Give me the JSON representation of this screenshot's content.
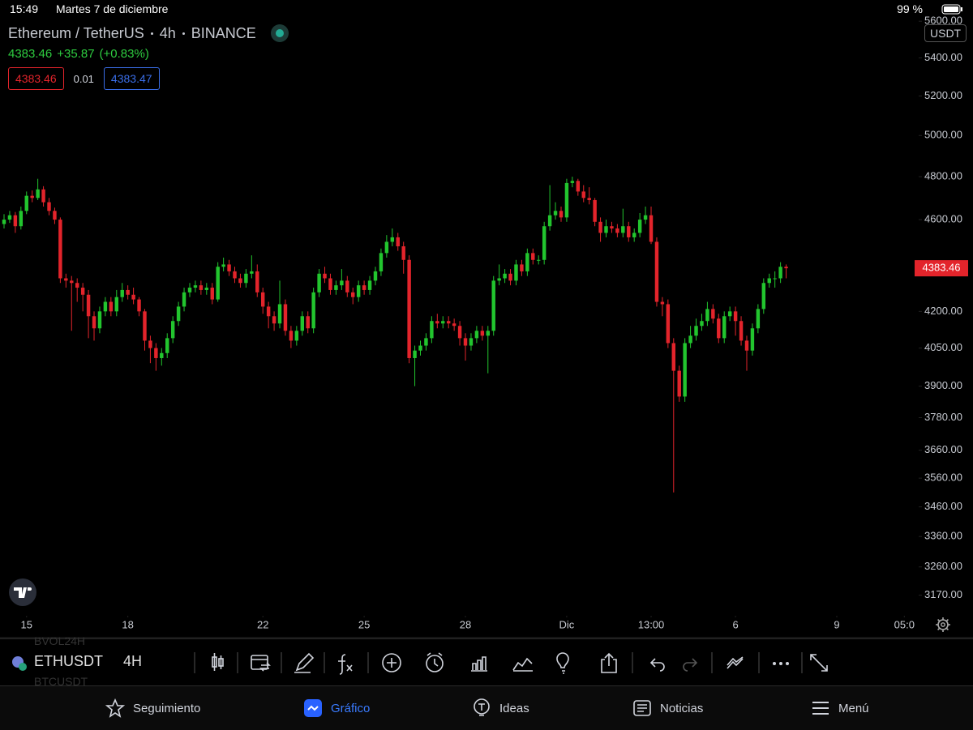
{
  "status_bar": {
    "time": "15:49",
    "date": "Martes 7 de diciembre",
    "battery": "99 %"
  },
  "header": {
    "name": "Ethereum / TetherUS",
    "interval": "4h",
    "exchange": "BINANCE",
    "last": "4383.46",
    "change": "+35.87",
    "change_pct": "(+0.83%)",
    "bid": "4383.46",
    "spread": "0.01",
    "ask": "4383.47",
    "currency": "USDT"
  },
  "chart_data": {
    "type": "candlestick",
    "up_color": "#22c52e",
    "down_color": "#e3242b",
    "log_scale": true,
    "ylim": [
      3106,
      5719
    ],
    "yticks": [
      {
        "value": 5600,
        "label": "5600.00"
      },
      {
        "value": 5400,
        "label": "5400.00"
      },
      {
        "value": 5200,
        "label": "5200.00"
      },
      {
        "value": 5000,
        "label": "5000.00"
      },
      {
        "value": 4800,
        "label": "4800.00"
      },
      {
        "value": 4600,
        "label": "4600.00"
      },
      {
        "value": 4200,
        "label": "4200.00"
      },
      {
        "value": 4050,
        "label": "4050.00"
      },
      {
        "value": 3900,
        "label": "3900.00"
      },
      {
        "value": 3780,
        "label": "3780.00"
      },
      {
        "value": 3660,
        "label": "3660.00"
      },
      {
        "value": 3560,
        "label": "3560.00"
      },
      {
        "value": 3460,
        "label": "3460.00"
      },
      {
        "value": 3360,
        "label": "3360.00"
      },
      {
        "value": 3260,
        "label": "3260.00"
      },
      {
        "value": 3170,
        "label": "3170.00"
      }
    ],
    "xlim": [
      -0.72,
      161.4
    ],
    "xticks": [
      {
        "value": 4,
        "label": "15"
      },
      {
        "value": 22,
        "label": "18"
      },
      {
        "value": 46,
        "label": "22"
      },
      {
        "value": 64,
        "label": "25"
      },
      {
        "value": 82,
        "label": "28"
      },
      {
        "value": 100,
        "label": "Dic"
      },
      {
        "value": 115,
        "label": "13:00"
      },
      {
        "value": 130,
        "label": "6"
      },
      {
        "value": 148,
        "label": "9"
      },
      {
        "value": 160,
        "label": "05:0"
      }
    ],
    "last_price": 4383.46,
    "candles": [
      [
        4580,
        4625,
        4560,
        4600
      ],
      [
        4600,
        4640,
        4585,
        4620
      ],
      [
        4620,
        4635,
        4540,
        4570
      ],
      [
        4570,
        4660,
        4555,
        4640
      ],
      [
        4640,
        4730,
        4625,
        4710
      ],
      [
        4710,
        4735,
        4680,
        4700
      ],
      [
        4700,
        4790,
        4690,
        4740
      ],
      [
        4740,
        4755,
        4660,
        4680
      ],
      [
        4680,
        4700,
        4620,
        4640
      ],
      [
        4640,
        4655,
        4580,
        4600
      ],
      [
        4600,
        4610,
        4320,
        4340
      ],
      [
        4340,
        4360,
        4300,
        4330
      ],
      [
        4330,
        4350,
        4120,
        4320
      ],
      [
        4320,
        4340,
        4240,
        4300
      ],
      [
        4300,
        4320,
        4200,
        4270
      ],
      [
        4270,
        4290,
        4090,
        4180
      ],
      [
        4180,
        4200,
        4080,
        4130
      ],
      [
        4130,
        4220,
        4110,
        4200
      ],
      [
        4200,
        4260,
        4180,
        4240
      ],
      [
        4240,
        4260,
        4180,
        4200
      ],
      [
        4200,
        4290,
        4180,
        4260
      ],
      [
        4260,
        4320,
        4240,
        4290
      ],
      [
        4290,
        4310,
        4250,
        4270
      ],
      [
        4270,
        4300,
        4230,
        4250
      ],
      [
        4250,
        4260,
        4180,
        4200
      ],
      [
        4200,
        4210,
        4040,
        4080
      ],
      [
        4080,
        4100,
        3990,
        4050
      ],
      [
        4050,
        4070,
        3960,
        4010
      ],
      [
        4010,
        4050,
        3980,
        4030
      ],
      [
        4030,
        4110,
        4010,
        4090
      ],
      [
        4090,
        4180,
        4070,
        4160
      ],
      [
        4160,
        4240,
        4140,
        4220
      ],
      [
        4220,
        4300,
        4200,
        4280
      ],
      [
        4280,
        4320,
        4260,
        4300
      ],
      [
        4300,
        4330,
        4280,
        4310
      ],
      [
        4310,
        4330,
        4270,
        4290
      ],
      [
        4290,
        4320,
        4270,
        4300
      ],
      [
        4300,
        4320,
        4230,
        4250
      ],
      [
        4250,
        4410,
        4240,
        4390
      ],
      [
        4390,
        4430,
        4370,
        4400
      ],
      [
        4400,
        4420,
        4350,
        4370
      ],
      [
        4370,
        4390,
        4320,
        4340
      ],
      [
        4340,
        4360,
        4300,
        4320
      ],
      [
        4320,
        4380,
        4300,
        4360
      ],
      [
        4360,
        4440,
        4340,
        4370
      ],
      [
        4370,
        4400,
        4260,
        4280
      ],
      [
        4280,
        4300,
        4190,
        4220
      ],
      [
        4220,
        4240,
        4130,
        4180
      ],
      [
        4180,
        4200,
        4120,
        4150
      ],
      [
        4150,
        4330,
        4130,
        4230
      ],
      [
        4230,
        4250,
        4100,
        4120
      ],
      [
        4120,
        4140,
        4050,
        4080
      ],
      [
        4080,
        4140,
        4060,
        4120
      ],
      [
        4120,
        4200,
        4100,
        4180
      ],
      [
        4180,
        4200,
        4110,
        4130
      ],
      [
        4130,
        4300,
        4110,
        4280
      ],
      [
        4280,
        4380,
        4260,
        4360
      ],
      [
        4360,
        4390,
        4320,
        4340
      ],
      [
        4340,
        4360,
        4270,
        4290
      ],
      [
        4290,
        4330,
        4270,
        4310
      ],
      [
        4310,
        4380,
        4290,
        4330
      ],
      [
        4330,
        4350,
        4260,
        4280
      ],
      [
        4280,
        4300,
        4230,
        4260
      ],
      [
        4260,
        4330,
        4240,
        4310
      ],
      [
        4310,
        4330,
        4270,
        4290
      ],
      [
        4290,
        4350,
        4270,
        4330
      ],
      [
        4330,
        4390,
        4310,
        4370
      ],
      [
        4370,
        4470,
        4350,
        4450
      ],
      [
        4450,
        4530,
        4430,
        4500
      ],
      [
        4500,
        4560,
        4480,
        4520
      ],
      [
        4520,
        4540,
        4460,
        4480
      ],
      [
        4480,
        4500,
        4360,
        4420
      ],
      [
        4420,
        4440,
        3990,
        4010
      ],
      [
        4010,
        4060,
        3900,
        4040
      ],
      [
        4040,
        4080,
        4020,
        4060
      ],
      [
        4060,
        4110,
        4040,
        4090
      ],
      [
        4090,
        4180,
        4070,
        4160
      ],
      [
        4160,
        4190,
        4130,
        4150
      ],
      [
        4150,
        4180,
        4130,
        4160
      ],
      [
        4160,
        4180,
        4130,
        4150
      ],
      [
        4150,
        4170,
        4120,
        4140
      ],
      [
        4140,
        4160,
        4060,
        4090
      ],
      [
        4090,
        4110,
        4000,
        4060
      ],
      [
        4060,
        4110,
        4040,
        4090
      ],
      [
        4090,
        4140,
        4070,
        4120
      ],
      [
        4120,
        4140,
        4080,
        4100
      ],
      [
        4100,
        4140,
        3950,
        4120
      ],
      [
        4120,
        4350,
        4100,
        4330
      ],
      [
        4330,
        4400,
        4310,
        4340
      ],
      [
        4340,
        4380,
        4320,
        4360
      ],
      [
        4360,
        4380,
        4310,
        4330
      ],
      [
        4330,
        4420,
        4310,
        4400
      ],
      [
        4400,
        4420,
        4350,
        4370
      ],
      [
        4370,
        4470,
        4350,
        4450
      ],
      [
        4450,
        4470,
        4400,
        4420
      ],
      [
        4420,
        4440,
        4400,
        4420
      ],
      [
        4420,
        4590,
        4400,
        4570
      ],
      [
        4570,
        4760,
        4550,
        4620
      ],
      [
        4620,
        4680,
        4600,
        4640
      ],
      [
        4640,
        4660,
        4590,
        4610
      ],
      [
        4610,
        4790,
        4590,
        4770
      ],
      [
        4770,
        4800,
        4750,
        4780
      ],
      [
        4780,
        4790,
        4710,
        4730
      ],
      [
        4730,
        4760,
        4680,
        4700
      ],
      [
        4700,
        4750,
        4670,
        4690
      ],
      [
        4690,
        4700,
        4570,
        4590
      ],
      [
        4590,
        4610,
        4500,
        4540
      ],
      [
        4540,
        4600,
        4520,
        4570
      ],
      [
        4570,
        4590,
        4540,
        4560
      ],
      [
        4560,
        4580,
        4520,
        4540
      ],
      [
        4540,
        4650,
        4520,
        4570
      ],
      [
        4570,
        4590,
        4500,
        4520
      ],
      [
        4520,
        4560,
        4500,
        4540
      ],
      [
        4540,
        4630,
        4520,
        4600
      ],
      [
        4600,
        4660,
        4580,
        4620
      ],
      [
        4620,
        4660,
        4490,
        4500
      ],
      [
        4500,
        4520,
        4220,
        4240
      ],
      [
        4240,
        4260,
        4180,
        4230
      ],
      [
        4230,
        4250,
        4050,
        4070
      ],
      [
        4070,
        4090,
        3510,
        3960
      ],
      [
        3960,
        3980,
        3840,
        3860
      ],
      [
        3860,
        4090,
        3840,
        4070
      ],
      [
        4070,
        4140,
        4050,
        4100
      ],
      [
        4100,
        4170,
        4080,
        4140
      ],
      [
        4140,
        4190,
        4120,
        4160
      ],
      [
        4160,
        4240,
        4140,
        4210
      ],
      [
        4210,
        4230,
        4150,
        4170
      ],
      [
        4170,
        4190,
        4070,
        4090
      ],
      [
        4090,
        4200,
        4070,
        4180
      ],
      [
        4180,
        4220,
        4160,
        4200
      ],
      [
        4200,
        4220,
        4100,
        4160
      ],
      [
        4160,
        4180,
        4060,
        4080
      ],
      [
        4080,
        4100,
        3960,
        4040
      ],
      [
        4040,
        4150,
        4020,
        4130
      ],
      [
        4130,
        4230,
        4110,
        4210
      ],
      [
        4210,
        4340,
        4190,
        4320
      ],
      [
        4320,
        4360,
        4300,
        4340
      ],
      [
        4340,
        4370,
        4300,
        4340
      ],
      [
        4340,
        4410,
        4320,
        4390
      ],
      [
        4390,
        4400,
        4340,
        4383.46
      ]
    ]
  },
  "toolbar": {
    "symbol": "ETHUSDT",
    "interval": "4H",
    "ghost_above": "BVOL24H",
    "ghost_below": "BTCUSDT"
  },
  "tabs": [
    "Seguimiento",
    "Gráfico",
    "Ideas",
    "Noticias",
    "Menú"
  ]
}
